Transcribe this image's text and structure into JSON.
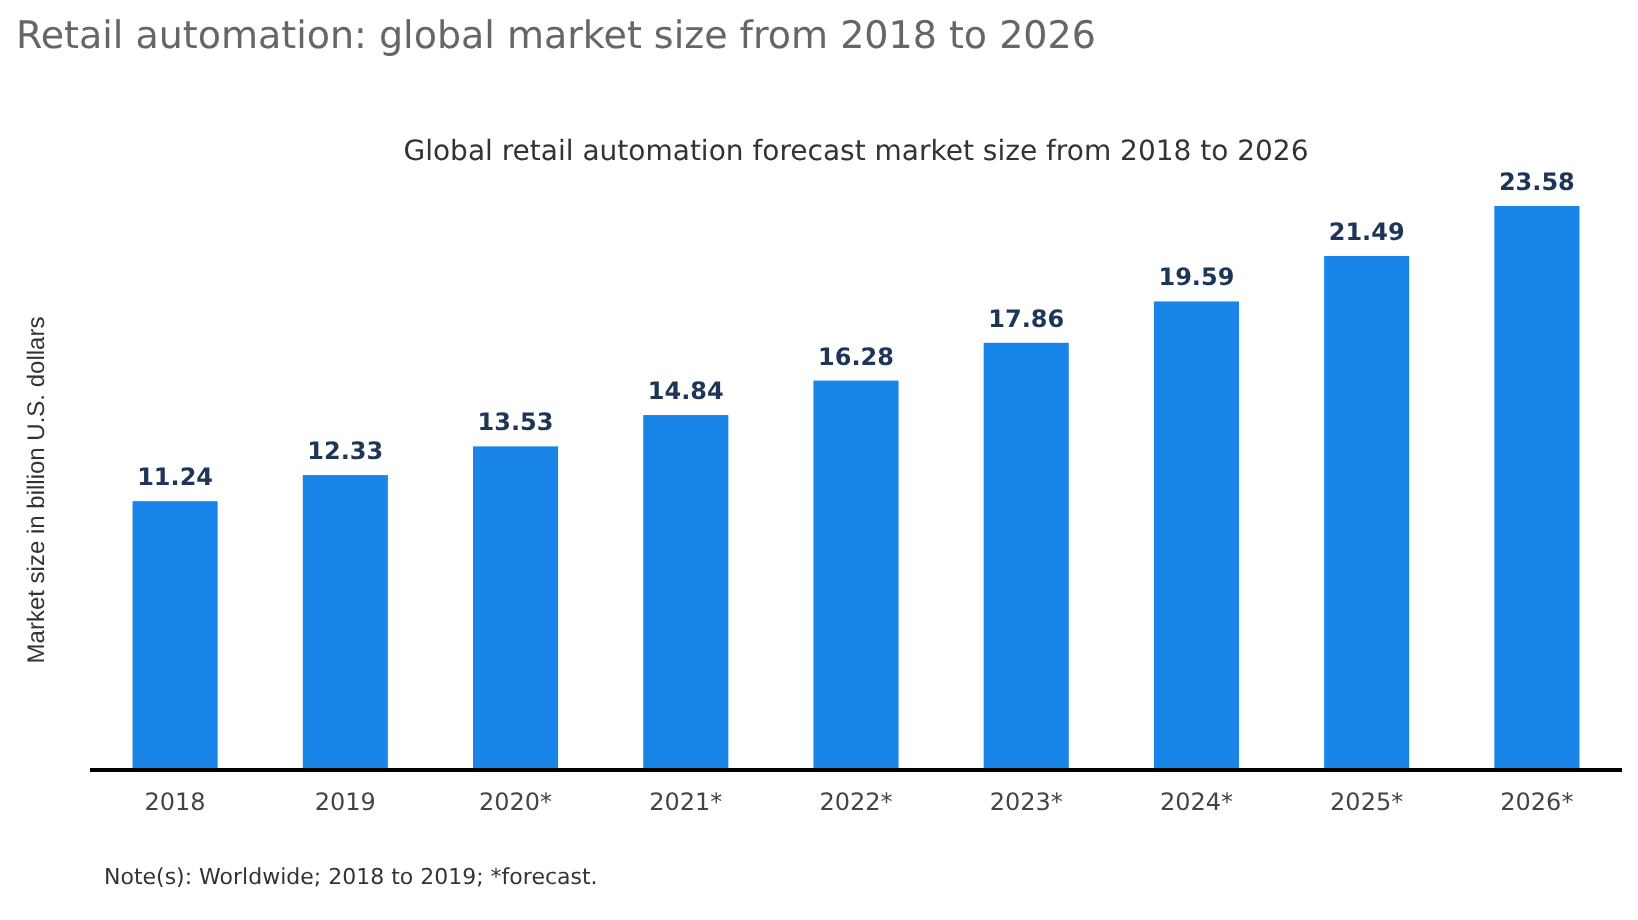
{
  "chart_data": {
    "type": "bar",
    "title": "Retail automation: global market size from 2018 to 2026",
    "subtitle": "Global retail automation forecast market size from 2018 to 2026",
    "ylabel": "Market size in billion U.S. dollars",
    "categories": [
      "2018",
      "2019",
      "2020*",
      "2021*",
      "2022*",
      "2023*",
      "2024*",
      "2025*",
      "2026*"
    ],
    "values": [
      11.24,
      12.33,
      13.53,
      14.84,
      16.28,
      17.86,
      19.59,
      21.49,
      23.58
    ],
    "color": "#1a85e8",
    "data_labels": true,
    "grid": false,
    "annotations": [
      "Note(s): Worldwide; 2018 to 2019; *forecast."
    ]
  }
}
